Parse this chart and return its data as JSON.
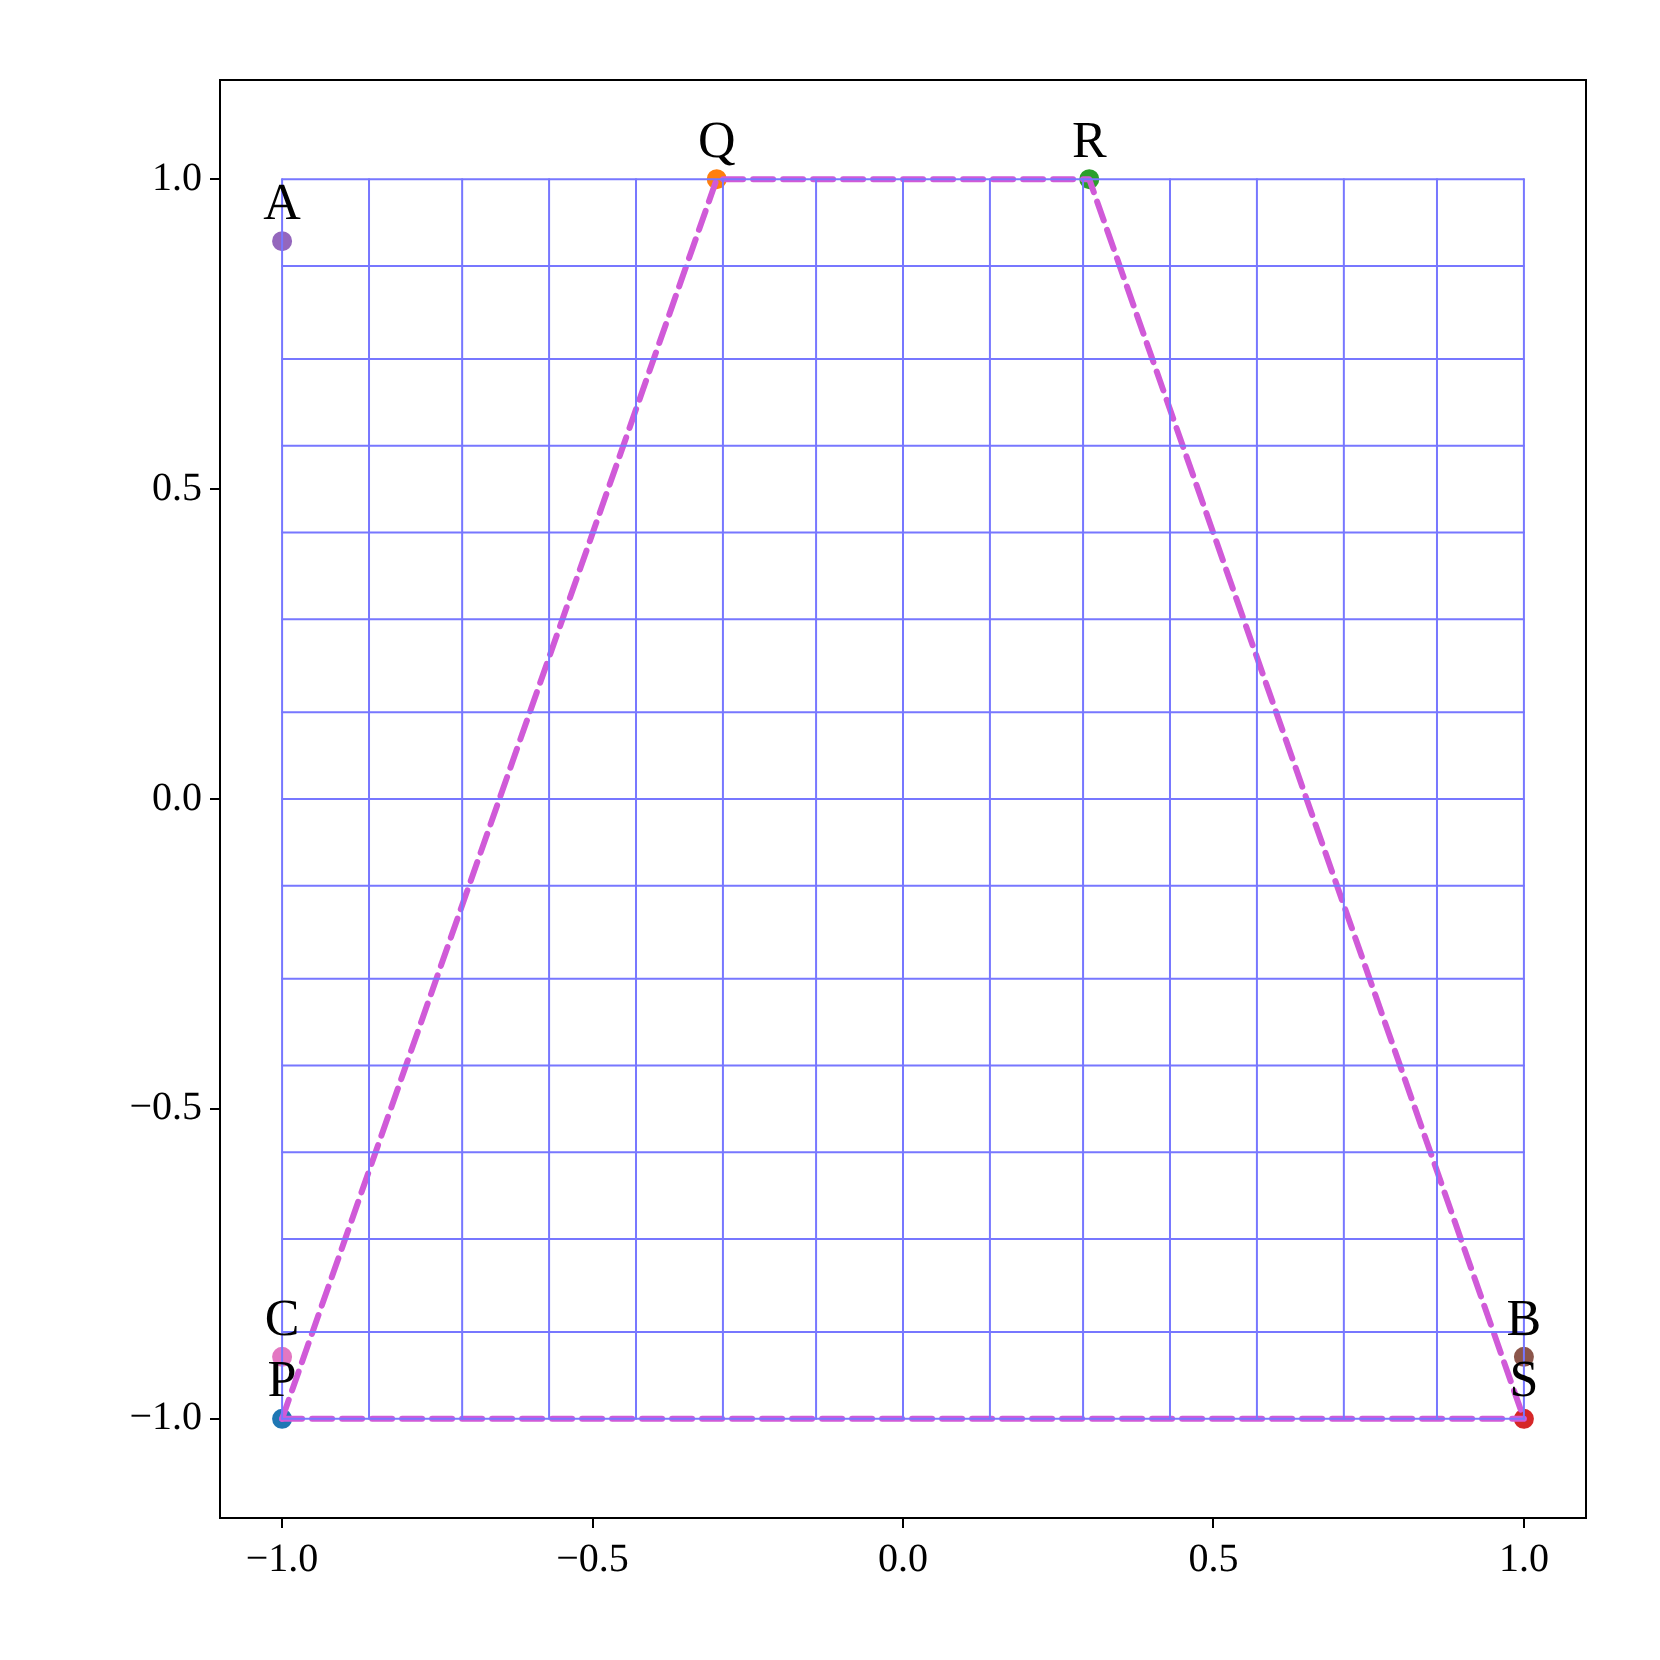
{
  "chart_data": {
    "type": "scatter",
    "grid": false,
    "legend": false,
    "xlim": [
      -1.1,
      1.1
    ],
    "ylim": [
      -1.16,
      1.16
    ],
    "xticks": [
      {
        "value": -1,
        "label": "−1.0"
      },
      {
        "value": -0.5,
        "label": "−0.5"
      },
      {
        "value": 0,
        "label": "0.0"
      },
      {
        "value": 0.5,
        "label": "0.5"
      },
      {
        "value": 1,
        "label": "1.0"
      }
    ],
    "yticks": [
      {
        "value": -1,
        "label": "−1.0"
      },
      {
        "value": -0.5,
        "label": "−0.5"
      },
      {
        "value": 0,
        "label": "0.0"
      },
      {
        "value": 0.5,
        "label": "0.5"
      },
      {
        "value": 1,
        "label": "1.0"
      }
    ],
    "series": [
      {
        "type": "line",
        "color": "#7777ff",
        "x": [
          -1,
          -1
        ],
        "values": [
          -1,
          1
        ]
      },
      {
        "type": "line",
        "color": "#7777ff",
        "x": [
          -0.86,
          -0.86
        ],
        "values": [
          -1,
          1
        ]
      },
      {
        "type": "line",
        "color": "#7777ff",
        "x": [
          -0.71,
          -0.71
        ],
        "values": [
          -1,
          1
        ]
      },
      {
        "type": "line",
        "color": "#7777ff",
        "x": [
          -0.57,
          -0.57
        ],
        "values": [
          -1,
          1
        ]
      },
      {
        "type": "line",
        "color": "#7777ff",
        "x": [
          -0.43,
          -0.43
        ],
        "values": [
          -1,
          1
        ]
      },
      {
        "type": "line",
        "color": "#7777ff",
        "x": [
          -0.29,
          -0.29
        ],
        "values": [
          -1,
          1
        ]
      },
      {
        "type": "line",
        "color": "#7777ff",
        "x": [
          -0.14,
          -0.14
        ],
        "values": [
          -1,
          1
        ]
      },
      {
        "type": "line",
        "color": "#7777ff",
        "x": [
          0,
          0
        ],
        "values": [
          -1,
          1
        ]
      },
      {
        "type": "line",
        "color": "#7777ff",
        "x": [
          0.14,
          0.14
        ],
        "values": [
          -1,
          1
        ]
      },
      {
        "type": "line",
        "color": "#7777ff",
        "x": [
          0.29,
          0.29
        ],
        "values": [
          -1,
          1
        ]
      },
      {
        "type": "line",
        "color": "#7777ff",
        "x": [
          0.43,
          0.43
        ],
        "values": [
          -1,
          1
        ]
      },
      {
        "type": "line",
        "color": "#7777ff",
        "x": [
          0.57,
          0.57
        ],
        "values": [
          -1,
          1
        ]
      },
      {
        "type": "line",
        "color": "#7777ff",
        "x": [
          0.71,
          0.71
        ],
        "values": [
          -1,
          1
        ]
      },
      {
        "type": "line",
        "color": "#7777ff",
        "x": [
          0.86,
          0.86
        ],
        "values": [
          -1,
          1
        ]
      },
      {
        "type": "line",
        "color": "#7777ff",
        "x": [
          1,
          1
        ],
        "values": [
          -1,
          1
        ]
      },
      {
        "type": "line",
        "color": "#7777ff",
        "x": [
          -1,
          1
        ],
        "values": [
          -1,
          -1
        ]
      },
      {
        "type": "line",
        "color": "#7777ff",
        "x": [
          -1,
          1
        ],
        "values": [
          -0.86,
          -0.86
        ]
      },
      {
        "type": "line",
        "color": "#7777ff",
        "x": [
          -1,
          1
        ],
        "values": [
          -0.71,
          -0.71
        ]
      },
      {
        "type": "line",
        "color": "#7777ff",
        "x": [
          -1,
          1
        ],
        "values": [
          -0.57,
          -0.57
        ]
      },
      {
        "type": "line",
        "color": "#7777ff",
        "x": [
          -1,
          1
        ],
        "values": [
          -0.43,
          -0.43
        ]
      },
      {
        "type": "line",
        "color": "#7777ff",
        "x": [
          -1,
          1
        ],
        "values": [
          -0.29,
          -0.29
        ]
      },
      {
        "type": "line",
        "color": "#7777ff",
        "x": [
          -1,
          1
        ],
        "values": [
          -0.14,
          -0.14
        ]
      },
      {
        "type": "line",
        "color": "#7777ff",
        "x": [
          -1,
          1
        ],
        "values": [
          0,
          0
        ]
      },
      {
        "type": "line",
        "color": "#7777ff",
        "x": [
          -1,
          1
        ],
        "values": [
          0.14,
          0.14
        ]
      },
      {
        "type": "line",
        "color": "#7777ff",
        "x": [
          -1,
          1
        ],
        "values": [
          0.29,
          0.29
        ]
      },
      {
        "type": "line",
        "color": "#7777ff",
        "x": [
          -1,
          1
        ],
        "values": [
          0.43,
          0.43
        ]
      },
      {
        "type": "line",
        "color": "#7777ff",
        "x": [
          -1,
          1
        ],
        "values": [
          0.57,
          0.57
        ]
      },
      {
        "type": "line",
        "color": "#7777ff",
        "x": [
          -1,
          1
        ],
        "values": [
          0.71,
          0.71
        ]
      },
      {
        "type": "line",
        "color": "#7777ff",
        "x": [
          -1,
          1
        ],
        "values": [
          0.86,
          0.86
        ]
      },
      {
        "type": "line",
        "color": "#7777ff",
        "x": [
          -1,
          1
        ],
        "values": [
          1,
          1
        ]
      },
      {
        "type": "line",
        "color": "#d05ad8",
        "line_style": "dashed",
        "x": [
          -1,
          -0.3,
          0.3,
          1
        ],
        "values": [
          -1,
          1,
          1,
          -1
        ]
      },
      {
        "type": "line",
        "color": "#d05ad8",
        "line_style": "dashed",
        "x": [
          -1,
          1
        ],
        "values": [
          -1,
          -1
        ]
      },
      {
        "type": "scatter",
        "name": "A",
        "color": "#9467bd",
        "marker": "circle",
        "x": [
          -1
        ],
        "values": [
          0.9
        ]
      },
      {
        "type": "scatter",
        "name": "B",
        "color": "#8c564b",
        "marker": "circle",
        "x": [
          1
        ],
        "values": [
          -0.9
        ]
      },
      {
        "type": "scatter",
        "name": "C",
        "color": "#e377c2",
        "marker": "circle",
        "x": [
          -1
        ],
        "values": [
          -0.9
        ]
      },
      {
        "type": "scatter",
        "name": "P",
        "color": "#1f77b4",
        "marker": "circle",
        "x": [
          -1
        ],
        "values": [
          -1
        ]
      },
      {
        "type": "scatter",
        "name": "Q",
        "color": "#ff7f0e",
        "marker": "circle",
        "x": [
          -0.3
        ],
        "values": [
          1
        ]
      },
      {
        "type": "scatter",
        "name": "R",
        "color": "#2ca02c",
        "marker": "circle",
        "x": [
          0.3
        ],
        "values": [
          1
        ]
      },
      {
        "type": "scatter",
        "name": "S",
        "color": "#d62728",
        "marker": "circle",
        "x": [
          1
        ],
        "values": [
          -1
        ]
      }
    ]
  }
}
